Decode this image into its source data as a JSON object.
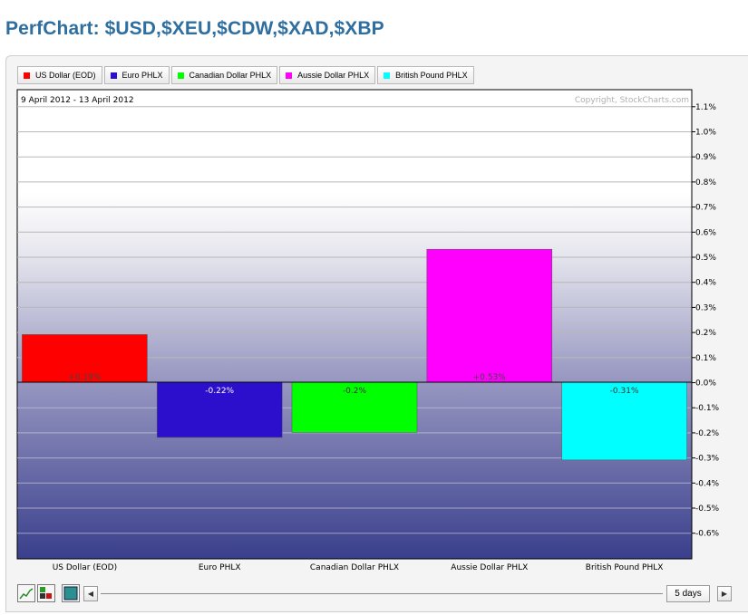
{
  "page": {
    "title": "PerfChart: $USD,$XEU,$CDW,$XAD,$XBP"
  },
  "legend": [
    {
      "label": "US Dollar (EOD)",
      "color": "#ff0000"
    },
    {
      "label": "Euro PHLX",
      "color": "#2b0fcc"
    },
    {
      "label": "Canadian Dollar PHLX",
      "color": "#00ff00"
    },
    {
      "label": "Aussie Dollar PHLX",
      "color": "#ff00ff"
    },
    {
      "label": "British Pound PHLX",
      "color": "#00ffff"
    }
  ],
  "chart_meta": {
    "date_range": "9 April 2012 - 13 April 2012",
    "copyright": "Copyright, StockCharts.com"
  },
  "chart_data": {
    "type": "bar",
    "categories": [
      "US Dollar (EOD)",
      "Euro PHLX",
      "Canadian Dollar PHLX",
      "Aussie Dollar PHLX",
      "British Pound PHLX"
    ],
    "values": [
      0.19,
      -0.22,
      -0.2,
      0.53,
      -0.31
    ],
    "value_labels": [
      "+0.19%",
      "-0.22%",
      "-0.2%",
      "+0.53%",
      "-0.31%"
    ],
    "colors": [
      "#ff0000",
      "#2b0fcc",
      "#00ff00",
      "#ff00ff",
      "#00ffff"
    ],
    "y_ticks": [
      1.1,
      1.0,
      0.9,
      0.8,
      0.7,
      0.6,
      0.5,
      0.4,
      0.3,
      0.2,
      0.1,
      0.0,
      -0.1,
      -0.2,
      -0.3,
      -0.4,
      -0.5,
      -0.6
    ],
    "y_tick_labels": [
      "1.1%",
      "1.0%",
      "0.9%",
      "0.8%",
      "0.7%",
      "0.6%",
      "0.5%",
      "0.4%",
      "0.3%",
      "0.2%",
      "0.1%",
      "0.0%",
      "-0.1%",
      "-0.2%",
      "-0.3%",
      "-0.4%",
      "-0.5%",
      "-0.6%"
    ],
    "ylim": [
      -0.7,
      1.15
    ],
    "y_axis_side": "right",
    "grid": true
  },
  "toolbar": {
    "range_label": "5 days",
    "left_arrow": "◀",
    "right_arrow": "▶"
  }
}
